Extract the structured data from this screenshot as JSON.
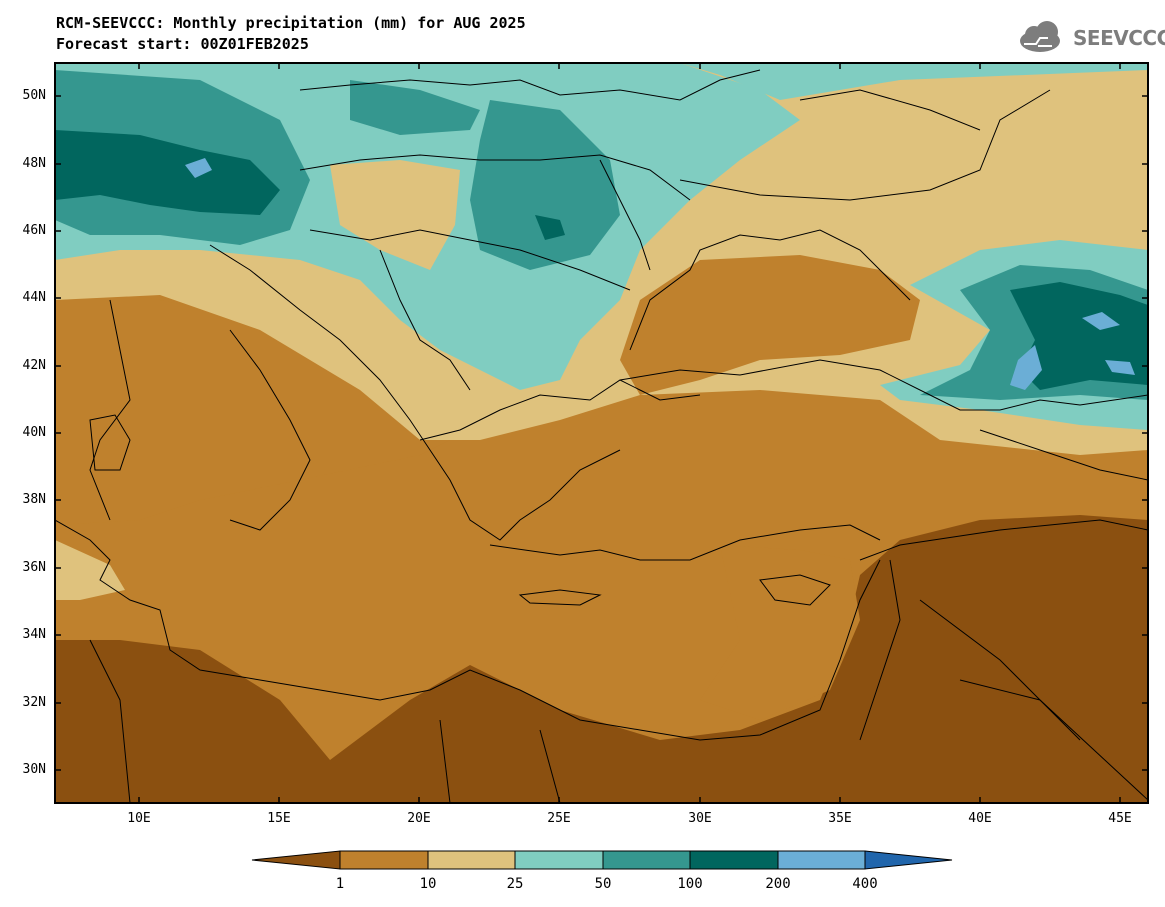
{
  "title": "RCM-SEEVCCC: Monthly precipitation (mm) for AUG 2025",
  "subtitle": "Forecast start: 00Z01FEB2025",
  "logo": {
    "text": "SEEVCCC",
    "icon": "cloud-logo-icon"
  },
  "map": {
    "lat_labels": [
      "50N",
      "48N",
      "46N",
      "44N",
      "42N",
      "40N",
      "38N",
      "36N",
      "34N",
      "32N",
      "30N"
    ],
    "lon_labels": [
      "10E",
      "15E",
      "20E",
      "25E",
      "30E",
      "35E",
      "40E",
      "45E"
    ],
    "lat_range": [
      29,
      51
    ],
    "lon_range": [
      7,
      46
    ]
  },
  "colorbar": {
    "labels": [
      "1",
      "10",
      "25",
      "50",
      "100",
      "200",
      "400"
    ],
    "colors": [
      "#8b5010",
      "#bf812d",
      "#dfc27d",
      "#80cdc1",
      "#35978f",
      "#01665e",
      "#6baed6",
      "#2166ac"
    ]
  }
}
